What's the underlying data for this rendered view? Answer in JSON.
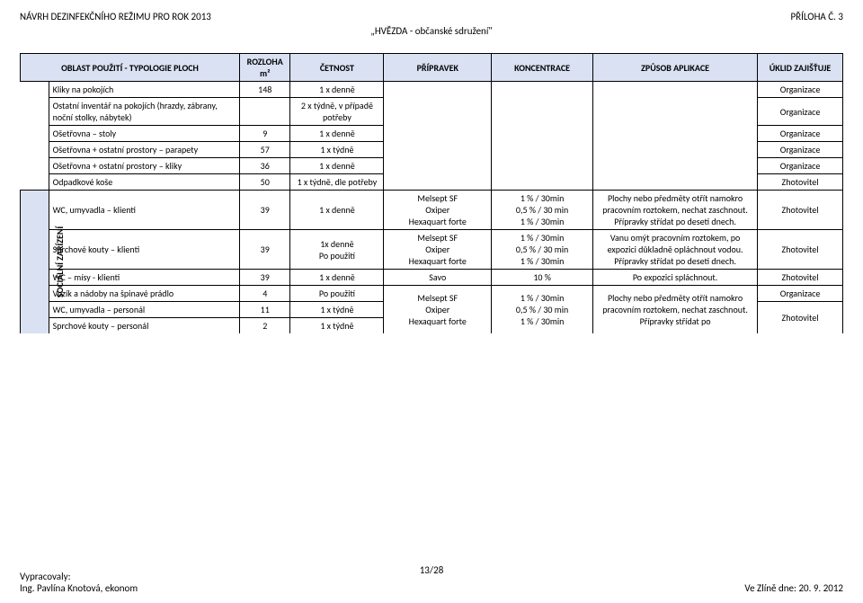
{
  "header": {
    "left": "NÁVRH DEZINFEKČNÍHO REŽIMU PRO ROK 2013",
    "center": "„HVĚZDA - občanské sdružení\"",
    "right": "PŘÍLOHA Č. 3"
  },
  "thead": {
    "c1": "OBLAST POUŽITÍ - TYPOLOGIE PLOCH",
    "c2": "ROZLOHA m²",
    "c3": "ČETNOST",
    "c4": "PŘÍPRAVEK",
    "c5": "KONCENTRACE",
    "c6": "ZPŮSOB APLIKACE",
    "c7": "ÚKLID ZAJIŠŤUJE"
  },
  "side_label": "SOCIÁLNÍ ZAŘÍZENÍ",
  "rows": {
    "r1": {
      "a": "Kliky na pokojích",
      "b": "148",
      "c": "1 x denně",
      "g": "Organizace"
    },
    "r2": {
      "a": "Ostatní inventář na pokojích (hrazdy, zábrany, noční stolky, nábytek)",
      "c": "2 x týdně, v případě potřeby",
      "g": "Organizace"
    },
    "r3": {
      "a": "Ošetřovna – stoly",
      "b": "9",
      "c": "1 x denně",
      "g": "Organizace"
    },
    "r4": {
      "a": "Ošetřovna + ostatní prostory – parapety",
      "b": "57",
      "c": "1 x týdně",
      "g": "Organizace"
    },
    "r5": {
      "a": "Ošetřovna + ostatní prostory – kliky",
      "b": "36",
      "c": "1 x denně",
      "g": "Organizace"
    },
    "r6": {
      "a": "Odpadkové koše",
      "b": "50",
      "c": "1 x týdně, dle potřeby",
      "g": "Zhotovitel"
    },
    "r7": {
      "a": "WC, umyvadla – klienti",
      "b": "39",
      "c": "1 x denně",
      "d": "Melsept SF\nOxiper\nHexaquart forte",
      "e": "1 % / 30min\n0,5 % / 30 min\n1 % / 30min",
      "f": "Plochy nebo předměty otřít namokro pracovním roztokem, nechat zaschnout. Přípravky střídat po deseti dnech.",
      "g": "Zhotovitel"
    },
    "r8": {
      "a": "Sprchové kouty  – klienti",
      "b": "39",
      "c": "1x denně\nPo použití",
      "d": "Melsept SF\nOxiper\nHexaquart forte",
      "e": "1 % / 30min\n0,5 % / 30 min\n1 % / 30min",
      "f": "Vanu omýt pracovním roztokem, po expozici důkladně opláchnout vodou. Přípravky střídat po deseti dnech.",
      "g": "Zhotovitel"
    },
    "r9": {
      "a": "WC – mísy - klienti",
      "b": "39",
      "c": "1 x denně",
      "d": "Savo",
      "e": "10 %",
      "f": "Po expozici spláchnout.",
      "g": "Zhotovitel"
    },
    "r10": {
      "a": "Vozík a nádoby na špinavé prádlo",
      "b": "4",
      "c": "Po použití",
      "g": "Organizace"
    },
    "r11": {
      "a": "WC, umyvadla – personál",
      "b": "11",
      "c": "1 x týdně"
    },
    "r12": {
      "a": "Sprchové kouty – personál",
      "b": "2",
      "c": "1 x týdně"
    },
    "merge_d_10_12": "Melsept SF\nOxiper\nHexaquart forte",
    "merge_e_10_12": "1 % / 30min\n0,5 % / 30 min\n1 % / 30min",
    "merge_f_10_12": "Plochy nebo předměty otřít namokro pracovním roztokem, nechat zaschnout. Přípravky střídat po",
    "merge_g_11_12": "Zhotovitel"
  },
  "footer": {
    "left1": "Vypracovaly:",
    "left2": "Ing. Pavlína Knotová, ekonom",
    "right": "Ve Zlíně dne: 20. 9. 2012",
    "page": "13/28"
  }
}
